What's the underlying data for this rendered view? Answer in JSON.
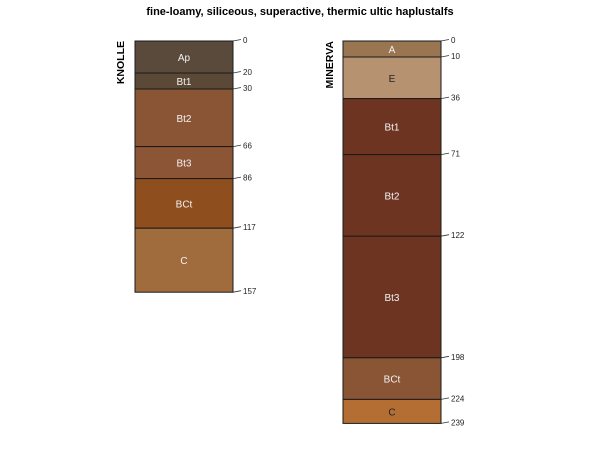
{
  "title": "fine-loamy, siliceous, superactive, thermic ultic haplustalfs",
  "profiles": [
    {
      "name": "KNOLLE",
      "horizons": [
        {
          "label": "Ap",
          "top": 0,
          "bottom": 20,
          "color": "#5a4a3c",
          "text_color": "#f2f2f2"
        },
        {
          "label": "Bt1",
          "top": 20,
          "bottom": 30,
          "color": "#5b4836",
          "text_color": "#f2f2f2"
        },
        {
          "label": "Bt2",
          "top": 30,
          "bottom": 66,
          "color": "#8a5534",
          "text_color": "#f2f2f2"
        },
        {
          "label": "Bt3",
          "top": 66,
          "bottom": 86,
          "color": "#8c5535",
          "text_color": "#f2f2f2"
        },
        {
          "label": "BCt",
          "top": 86,
          "bottom": 117,
          "color": "#8f4e1e",
          "text_color": "#f2f2f2"
        },
        {
          "label": "C",
          "top": 117,
          "bottom": 157,
          "color": "#a06c3e",
          "text_color": "#f2f2f2"
        }
      ],
      "depth_labels": [
        "0",
        "20",
        "30",
        "66",
        "86",
        "117",
        "157"
      ]
    },
    {
      "name": "MINERVA",
      "horizons": [
        {
          "label": "A",
          "top": 0,
          "bottom": 10,
          "color": "#9a7552",
          "text_color": "#f2f2f2"
        },
        {
          "label": "E",
          "top": 10,
          "bottom": 36,
          "color": "#b69270",
          "text_color": "#222222"
        },
        {
          "label": "Bt1",
          "top": 36,
          "bottom": 71,
          "color": "#6d3422",
          "text_color": "#f2f2f2"
        },
        {
          "label": "Bt2",
          "top": 71,
          "bottom": 122,
          "color": "#6d3422",
          "text_color": "#f2f2f2"
        },
        {
          "label": "Bt3",
          "top": 122,
          "bottom": 198,
          "color": "#6d3422",
          "text_color": "#f2f2f2"
        },
        {
          "label": "BCt",
          "top": 198,
          "bottom": 224,
          "color": "#8a5534",
          "text_color": "#f2f2f2"
        },
        {
          "label": "C",
          "top": 224,
          "bottom": 239,
          "color": "#b46e34",
          "text_color": "#222222"
        }
      ],
      "depth_labels": [
        "0",
        "10",
        "36",
        "71",
        "122",
        "198",
        "224",
        "239"
      ]
    }
  ]
}
